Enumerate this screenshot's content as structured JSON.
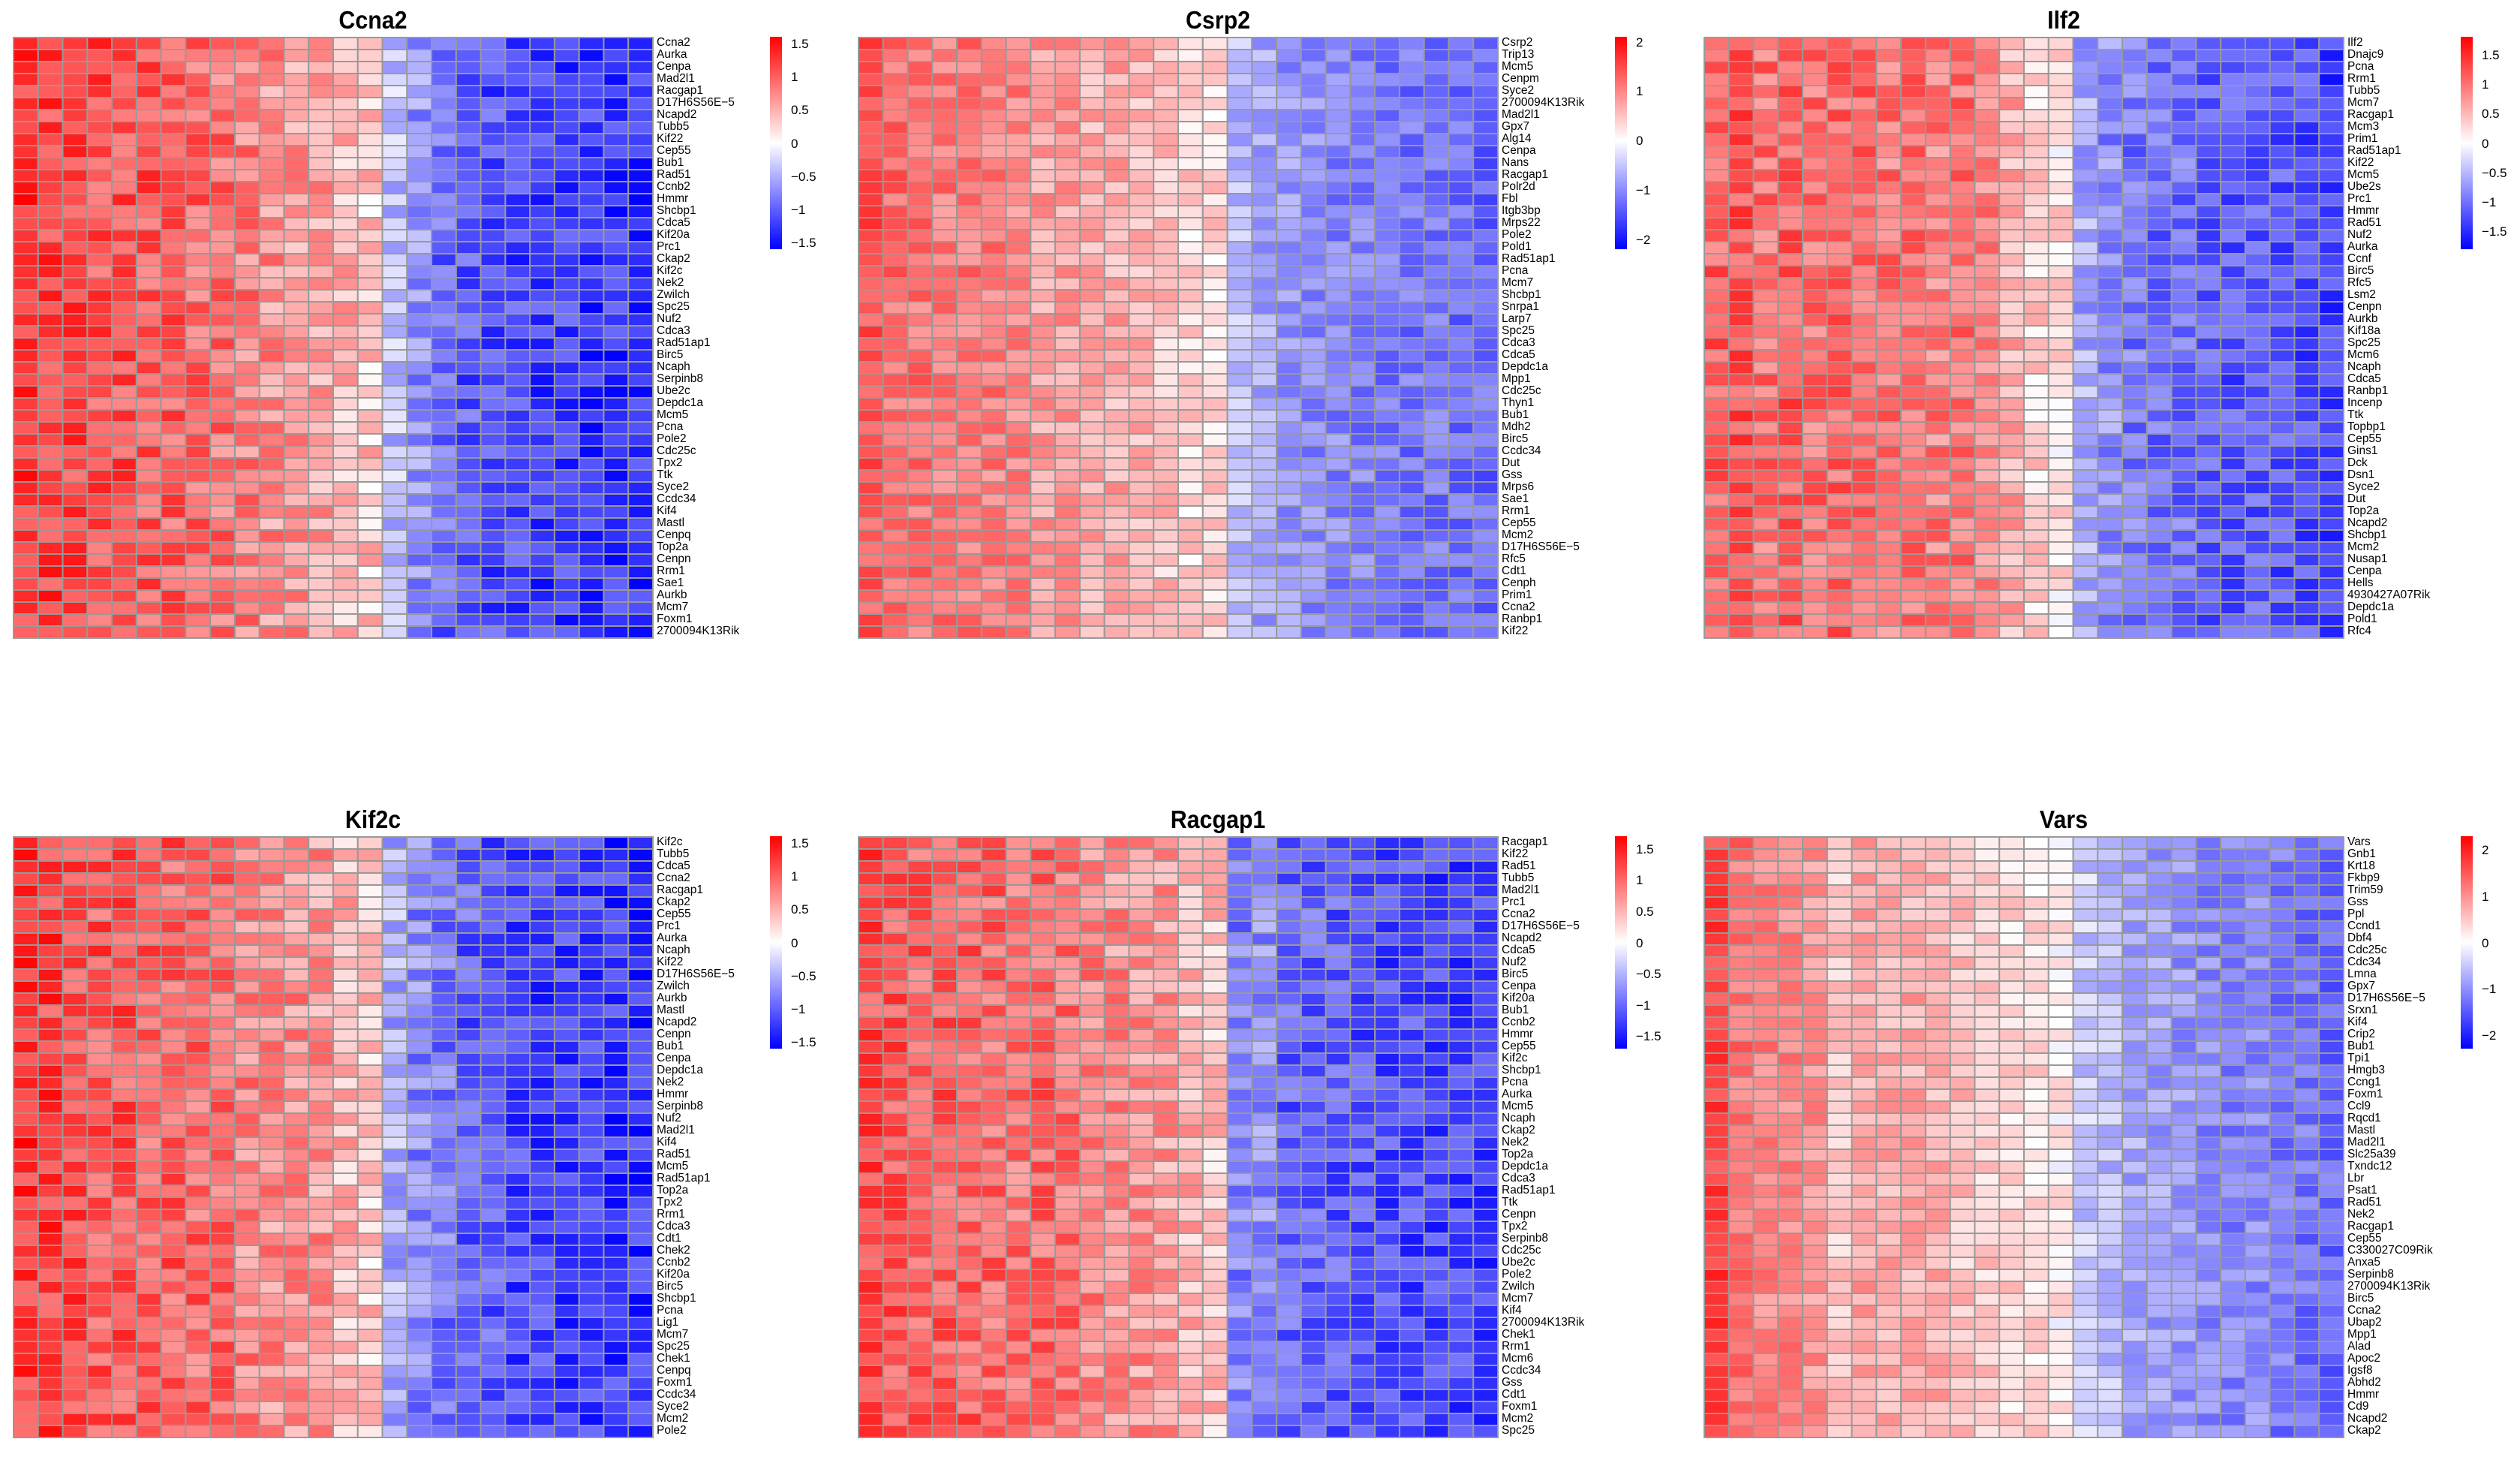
{
  "chart_data": [
    {
      "type": "heatmap",
      "title": "Ccna2",
      "rows": [
        "Ccna2",
        "Aurka",
        "Cenpa",
        "Mad2l1",
        "Racgap1",
        "D17H6S56E−5",
        "Ncapd2",
        "Tubb5",
        "Kif22",
        "Cep55",
        "Bub1",
        "Rad51",
        "Ccnb2",
        "Hmmr",
        "Shcbp1",
        "Cdca5",
        "Kif20a",
        "Prc1",
        "Ckap2",
        "Kif2c",
        "Nek2",
        "Zwilch",
        "Spc25",
        "Nuf2",
        "Cdca3",
        "Rad51ap1",
        "Birc5",
        "Ncaph",
        "Serpinb8",
        "Ube2c",
        "Depdc1a",
        "Mcm5",
        "Pcna",
        "Pole2",
        "Cdc25c",
        "Tpx2",
        "Ttk",
        "Syce2",
        "Ccdc34",
        "Kif4",
        "Mastl",
        "Cenpq",
        "Top2a",
        "Cenpn",
        "Rrm1",
        "Sae1",
        "Aurkb",
        "Mcm7",
        "Foxm1",
        "2700094K13Rik"
      ],
      "color_scale": {
        "low": "#0000ff",
        "mid": "#ffffff",
        "high": "#ff0000",
        "range": [
          -1.6,
          1.6
        ]
      },
      "legend_ticks": [
        "1.5",
        "1",
        "0.5",
        "0",
        "−0.5",
        "−1",
        "−1.5"
      ],
      "legend_tick_values": [
        1.5,
        1,
        0.5,
        0,
        -0.5,
        -1,
        -1.5
      ],
      "profile": [
        1.25,
        1.2,
        1.15,
        1.1,
        1.1,
        1.05,
        1.0,
        0.95,
        0.9,
        0.8,
        0.7,
        0.65,
        0.6,
        0.45,
        0.35,
        -0.45,
        -0.7,
        -0.95,
        -1.05,
        -1.1,
        -1.15,
        -1.2,
        -1.2,
        -1.25,
        -1.25,
        -1.3
      ]
    },
    {
      "type": "heatmap",
      "title": "Csrp2",
      "rows": [
        "Csrp2",
        "Trip13",
        "Mcm5",
        "Cenpm",
        "Syce2",
        "2700094K13Rik",
        "Mad2l1",
        "Gpx7",
        "Alg14",
        "Cenpa",
        "Nans",
        "Racgap1",
        "Polr2d",
        "Fbl",
        "Itgb3bp",
        "Mrps22",
        "Pole2",
        "Pold1",
        "Rad51ap1",
        "Pcna",
        "Mcm7",
        "Shcbp1",
        "Snrpa1",
        "Larp7",
        "Spc25",
        "Cdca3",
        "Cdca5",
        "Depdc1a",
        "Mpp1",
        "Cdc25c",
        "Thyn1",
        "Bub1",
        "Mdh2",
        "Birc5",
        "Ccdc34",
        "Dut",
        "Gss",
        "Mrps6",
        "Sae1",
        "Rrm1",
        "Cep55",
        "Mcm2",
        "D17H6S56E−5",
        "Rfc5",
        "Cdt1",
        "Cenph",
        "Prim1",
        "Ccna2",
        "Ranbp1",
        "Kif22"
      ],
      "color_scale": {
        "low": "#0000ff",
        "mid": "#ffffff",
        "high": "#ff0000",
        "range": [
          -2.2,
          2.1
        ]
      },
      "legend_ticks": [
        "2",
        "1",
        "0",
        "−1",
        "−2"
      ],
      "legend_tick_values": [
        2,
        1,
        0,
        -1,
        -2
      ],
      "profile": [
        1.4,
        1.2,
        1.15,
        1.1,
        1.1,
        1.05,
        1.0,
        0.8,
        0.8,
        0.7,
        0.7,
        0.6,
        0.5,
        0.35,
        0.35,
        -0.6,
        -0.8,
        -0.9,
        -1.0,
        -1.05,
        -1.1,
        -1.15,
        -1.2,
        -1.2,
        -1.25,
        -1.3
      ]
    },
    {
      "type": "heatmap",
      "title": "Ilf2",
      "rows": [
        "Ilf2",
        "Dnajc9",
        "Pcna",
        "Rrm1",
        "Tubb5",
        "Mcm7",
        "Racgap1",
        "Mcm3",
        "Prim1",
        "Rad51ap1",
        "Kif22",
        "Mcm5",
        "Ube2s",
        "Prc1",
        "Hmmr",
        "Rad51",
        "Nuf2",
        "Aurka",
        "Ccnf",
        "Birc5",
        "Rfc5",
        "Lsm2",
        "Cenpn",
        "Aurkb",
        "Kif18a",
        "Spc25",
        "Mcm6",
        "Ncaph",
        "Cdca5",
        "Ranbp1",
        "Incenp",
        "Ttk",
        "Topbp1",
        "Cep55",
        "Gins1",
        "Dck",
        "Dsn1",
        "Syce2",
        "Dut",
        "Top2a",
        "Ncapd2",
        "Shcbp1",
        "Mcm2",
        "Nusap1",
        "Cenpa",
        "Hells",
        "4930427A07Rik",
        "Depdc1a",
        "Pold1",
        "Rfc4"
      ],
      "color_scale": {
        "low": "#0000ff",
        "mid": "#ffffff",
        "high": "#ff0000",
        "range": [
          -1.8,
          1.8
        ]
      },
      "legend_ticks": [
        "1.5",
        "1",
        "0.5",
        "0",
        "−0.5",
        "−1",
        "−1.5"
      ],
      "legend_tick_values": [
        1.5,
        1,
        0.5,
        0,
        -0.5,
        -1,
        -1.5
      ],
      "profile": [
        1.1,
        1.2,
        1.0,
        1.15,
        1.0,
        1.05,
        1.05,
        0.95,
        1.0,
        0.9,
        1.0,
        0.85,
        0.6,
        0.3,
        0.2,
        -0.6,
        -0.8,
        -0.95,
        -1.05,
        -1.0,
        -1.15,
        -1.2,
        -1.15,
        -1.2,
        -1.25,
        -1.35
      ]
    },
    {
      "type": "heatmap",
      "title": "Kif2c",
      "rows": [
        "Kif2c",
        "Tubb5",
        "Cdca5",
        "Ccna2",
        "Racgap1",
        "Ckap2",
        "Cep55",
        "Prc1",
        "Aurka",
        "Ncaph",
        "Kif22",
        "D17H6S56E−5",
        "Zwilch",
        "Aurkb",
        "Mastl",
        "Ncapd2",
        "Cenpn",
        "Bub1",
        "Cenpa",
        "Depdc1a",
        "Nek2",
        "Hmmr",
        "Serpinb8",
        "Nuf2",
        "Mad2l1",
        "Kif4",
        "Rad51",
        "Mcm5",
        "Rad51ap1",
        "Top2a",
        "Tpx2",
        "Rrm1",
        "Cdca3",
        "Cdt1",
        "Chek2",
        "Ccnb2",
        "Kif20a",
        "Birc5",
        "Shcbp1",
        "Pcna",
        "Lig1",
        "Mcm7",
        "Spc25",
        "Chek1",
        "Cenpq",
        "Foxm1",
        "Ccdc34",
        "Syce2",
        "Mcm2",
        "Pole2"
      ],
      "color_scale": {
        "low": "#0000ff",
        "mid": "#ffffff",
        "high": "#ff0000",
        "range": [
          -1.6,
          1.6
        ]
      },
      "legend_ticks": [
        "1.5",
        "1",
        "0.5",
        "0",
        "−0.5",
        "−1",
        "−1.5"
      ],
      "legend_tick_values": [
        1.5,
        1,
        0.5,
        0,
        -0.5,
        -1,
        -1.5
      ],
      "profile": [
        1.25,
        1.2,
        1.15,
        1.05,
        1.05,
        1.0,
        1.0,
        0.95,
        0.95,
        0.75,
        0.7,
        0.7,
        0.65,
        0.45,
        0.35,
        -0.5,
        -0.75,
        -0.85,
        -1.0,
        -1.05,
        -1.15,
        -1.2,
        -1.2,
        -1.2,
        -1.25,
        -1.3
      ]
    },
    {
      "type": "heatmap",
      "title": "Racgap1",
      "rows": [
        "Racgap1",
        "Kif22",
        "Rad51",
        "Tubb5",
        "Mad2l1",
        "Prc1",
        "Ccna2",
        "D17H6S56E−5",
        "Ncapd2",
        "Cdca5",
        "Nuf2",
        "Birc5",
        "Cenpa",
        "Kif20a",
        "Bub1",
        "Ccnb2",
        "Hmmr",
        "Cep55",
        "Kif2c",
        "Shcbp1",
        "Pcna",
        "Aurka",
        "Mcm5",
        "Ncaph",
        "Ckap2",
        "Nek2",
        "Top2a",
        "Depdc1a",
        "Cdca3",
        "Rad51ap1",
        "Ttk",
        "Cenpn",
        "Tpx2",
        "Serpinb8",
        "Cdc25c",
        "Ube2c",
        "Pole2",
        "Zwilch",
        "Mcm7",
        "Kif4",
        "2700094K13Rik",
        "Chek1",
        "Rrm1",
        "Mcm6",
        "Ccdc34",
        "Gss",
        "Cdt1",
        "Foxm1",
        "Mcm2",
        "Spc25"
      ],
      "color_scale": {
        "low": "#0000ff",
        "mid": "#ffffff",
        "high": "#ff0000",
        "range": [
          -1.7,
          1.7
        ]
      },
      "legend_ticks": [
        "1.5",
        "1",
        "0.5",
        "0",
        "−0.5",
        "−1",
        "−1.5"
      ],
      "legend_tick_values": [
        1.5,
        1,
        0.5,
        0,
        -0.5,
        -1,
        -1.5
      ],
      "profile": [
        1.2,
        1.1,
        1.05,
        1.1,
        1.05,
        1.0,
        0.95,
        1.0,
        0.95,
        0.8,
        0.75,
        0.7,
        0.65,
        0.5,
        0.4,
        -0.85,
        -0.75,
        -1.05,
        -1.05,
        -1.1,
        -1.15,
        -1.2,
        -1.2,
        -1.25,
        -1.25,
        -1.3
      ]
    },
    {
      "type": "heatmap",
      "title": "Vars",
      "rows": [
        "Vars",
        "Gnb1",
        "Krt18",
        "Fkbp9",
        "Trim59",
        "Gss",
        "Ppl",
        "Ccnd1",
        "Dbf4",
        "Cdc25c",
        "Cdc34",
        "Lmna",
        "Gpx7",
        "D17H6S56E−5",
        "Srxn1",
        "Kif4",
        "Crip2",
        "Bub1",
        "Tpi1",
        "Hmgb3",
        "Ccng1",
        "Foxm1",
        "Ccl9",
        "Rqcd1",
        "Mastl",
        "Mad2l1",
        "Slc25a39",
        "Txndc12",
        "Lbr",
        "Psat1",
        "Rad51",
        "Nek2",
        "Racgap1",
        "Cep55",
        "C330027C09Rik",
        "Anxa5",
        "Serpinb8",
        "2700094K13Rik",
        "Birc5",
        "Ccna2",
        "Ubap2",
        "Mpp1",
        "Alad",
        "Apoc2",
        "Igsf8",
        "Abhd2",
        "Hmmr",
        "Cd9",
        "Ncapd2",
        "Ckap2"
      ],
      "color_scale": {
        "low": "#0000ff",
        "mid": "#ffffff",
        "high": "#ff0000",
        "range": [
          -2.3,
          2.3
        ]
      },
      "legend_ticks": [
        "2",
        "1",
        "0",
        "−1",
        "−2"
      ],
      "legend_tick_values": [
        2,
        1,
        0,
        -1,
        -2
      ],
      "profile": [
        1.7,
        1.25,
        1.1,
        1.1,
        0.95,
        0.45,
        0.8,
        0.75,
        0.75,
        0.7,
        0.55,
        0.45,
        0.35,
        0.3,
        0.15,
        -0.5,
        -0.6,
        -0.8,
        -0.85,
        -0.95,
        -1.05,
        -1.1,
        -1.05,
        -1.2,
        -1.25,
        -1.35
      ]
    }
  ]
}
